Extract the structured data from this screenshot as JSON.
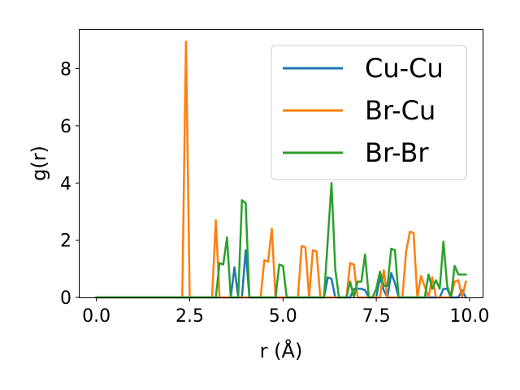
{
  "chart_data": {
    "type": "line",
    "xlabel": "r (Å)",
    "ylabel": "g(r)",
    "xlim": [
      -0.45,
      10.35
    ],
    "ylim": [
      0,
      9.35
    ],
    "xticks": [
      0.0,
      2.5,
      5.0,
      7.5,
      10.0
    ],
    "xtick_labels": [
      "0.0",
      "2.5",
      "5.0",
      "7.5",
      "10.0"
    ],
    "yticks": [
      0,
      2,
      4,
      6,
      8
    ],
    "ytick_labels": [
      "0",
      "2",
      "4",
      "6",
      "8"
    ],
    "legend_position": "top-right",
    "grid": false,
    "series": [
      {
        "name": "Cu-Cu",
        "color": "#1f77b4",
        "x": [
          0.0,
          3.6,
          3.7,
          3.8,
          3.9,
          4.0,
          4.1,
          5.0,
          6.1,
          6.2,
          6.3,
          6.4,
          6.8,
          6.9,
          7.0,
          7.1,
          7.2,
          7.3,
          7.5,
          7.6,
          7.7,
          7.8,
          7.9,
          8.0,
          8.1,
          9.2,
          9.3,
          9.4,
          9.5,
          9.7,
          9.8,
          9.9
        ],
        "y": [
          0,
          0,
          1.05,
          0,
          0,
          1.65,
          0,
          0,
          0,
          0.7,
          0.65,
          0,
          0,
          0.3,
          0.3,
          0.3,
          0.25,
          0,
          0,
          0.7,
          0.25,
          0,
          0.85,
          0.5,
          0,
          0,
          0.3,
          0.3,
          0,
          0,
          0.25,
          0
        ]
      },
      {
        "name": "Br-Cu",
        "color": "#ff7f0e",
        "x": [
          0.0,
          2.3,
          2.4,
          2.5,
          3.1,
          3.2,
          3.3,
          4.4,
          4.5,
          4.6,
          4.7,
          4.8,
          5.4,
          5.5,
          5.6,
          5.7,
          5.8,
          5.9,
          6.0,
          6.7,
          6.8,
          6.9,
          7.0,
          7.6,
          7.7,
          7.8,
          8.2,
          8.3,
          8.4,
          8.5,
          8.6,
          8.7,
          8.9,
          9.0,
          9.1,
          9.5,
          9.6,
          9.7,
          9.8,
          9.9
        ],
        "y": [
          0,
          0,
          8.95,
          0,
          0,
          2.7,
          0,
          0,
          1.3,
          1.25,
          2.4,
          0,
          0,
          1.8,
          1.75,
          0,
          1.65,
          1.6,
          0,
          0,
          1.2,
          1.15,
          0,
          0,
          0.95,
          0,
          0,
          1.6,
          2.3,
          2.25,
          0,
          0.75,
          0,
          0.7,
          0,
          0,
          0.55,
          0.6,
          0,
          0.55
        ]
      },
      {
        "name": "Br-Br",
        "color": "#2ca02c",
        "x": [
          0.0,
          3.1,
          3.2,
          3.3,
          3.4,
          3.5,
          3.6,
          3.8,
          3.9,
          4.0,
          4.1,
          4.8,
          4.9,
          5.0,
          5.1,
          6.1,
          6.2,
          6.3,
          6.4,
          6.5,
          6.7,
          6.8,
          6.9,
          7.0,
          7.1,
          7.2,
          7.3,
          7.4,
          7.5,
          7.6,
          7.7,
          7.8,
          7.9,
          8.0,
          8.1,
          8.8,
          8.9,
          9.0,
          9.1,
          9.2,
          9.3,
          9.4,
          9.5,
          9.6,
          9.7,
          9.8,
          9.9
        ],
        "y": [
          0,
          0,
          0,
          1.2,
          1.15,
          2.1,
          0,
          0,
          3.4,
          3.3,
          0,
          0,
          1.15,
          1.1,
          0,
          0,
          2.0,
          4.0,
          1.0,
          0,
          0,
          0.55,
          0,
          0.55,
          0.55,
          1.5,
          0,
          0,
          0.3,
          0.9,
          0.4,
          0.4,
          1.7,
          1.65,
          0,
          0,
          0.8,
          0.3,
          0.6,
          0.3,
          1.95,
          0.4,
          0,
          1.1,
          0.8,
          0.8,
          0.8
        ]
      }
    ]
  }
}
